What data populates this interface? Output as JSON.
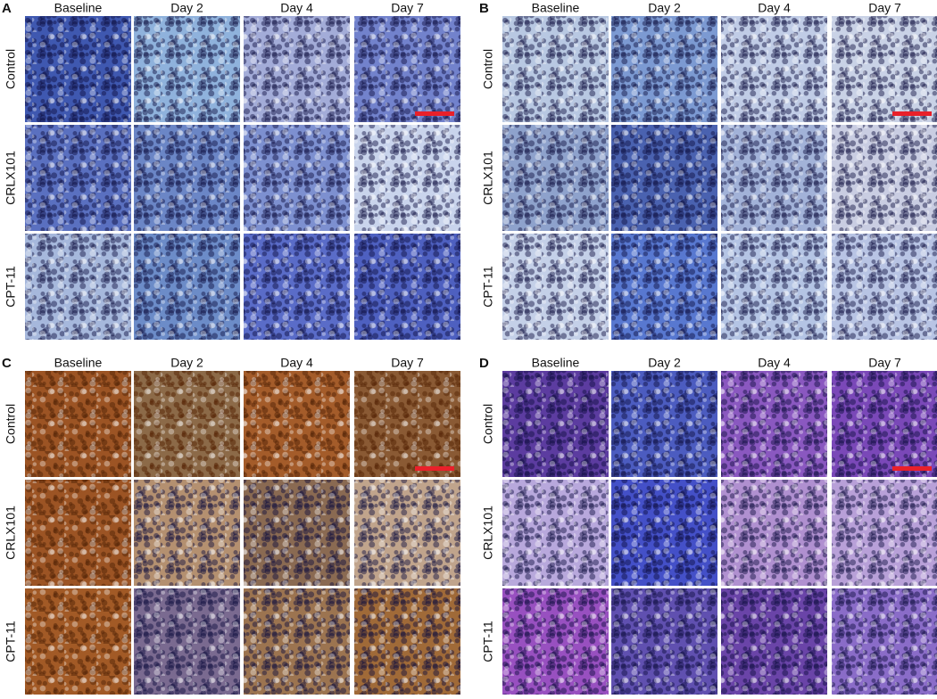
{
  "panels": [
    {
      "label": "A",
      "columns": [
        "Baseline",
        "Day 2",
        "Day 4",
        "Day 7"
      ],
      "rows": [
        "Control",
        "CRLX101",
        "CPT-11"
      ]
    },
    {
      "label": "B",
      "columns": [
        "Baseline",
        "Day 2",
        "Day 4",
        "Day 7"
      ],
      "rows": [
        "Control",
        "CRLX101",
        "CPT-11"
      ]
    },
    {
      "label": "C",
      "columns": [
        "Baseline",
        "Day 2",
        "Day 4",
        "Day 7"
      ],
      "rows": [
        "Control",
        "CRLX101",
        "CPT-11"
      ]
    },
    {
      "label": "D",
      "columns": [
        "Baseline",
        "Day 2",
        "Day 4",
        "Day 7"
      ],
      "rows": [
        "Control",
        "CRLX101",
        "CPT-11"
      ]
    }
  ]
}
